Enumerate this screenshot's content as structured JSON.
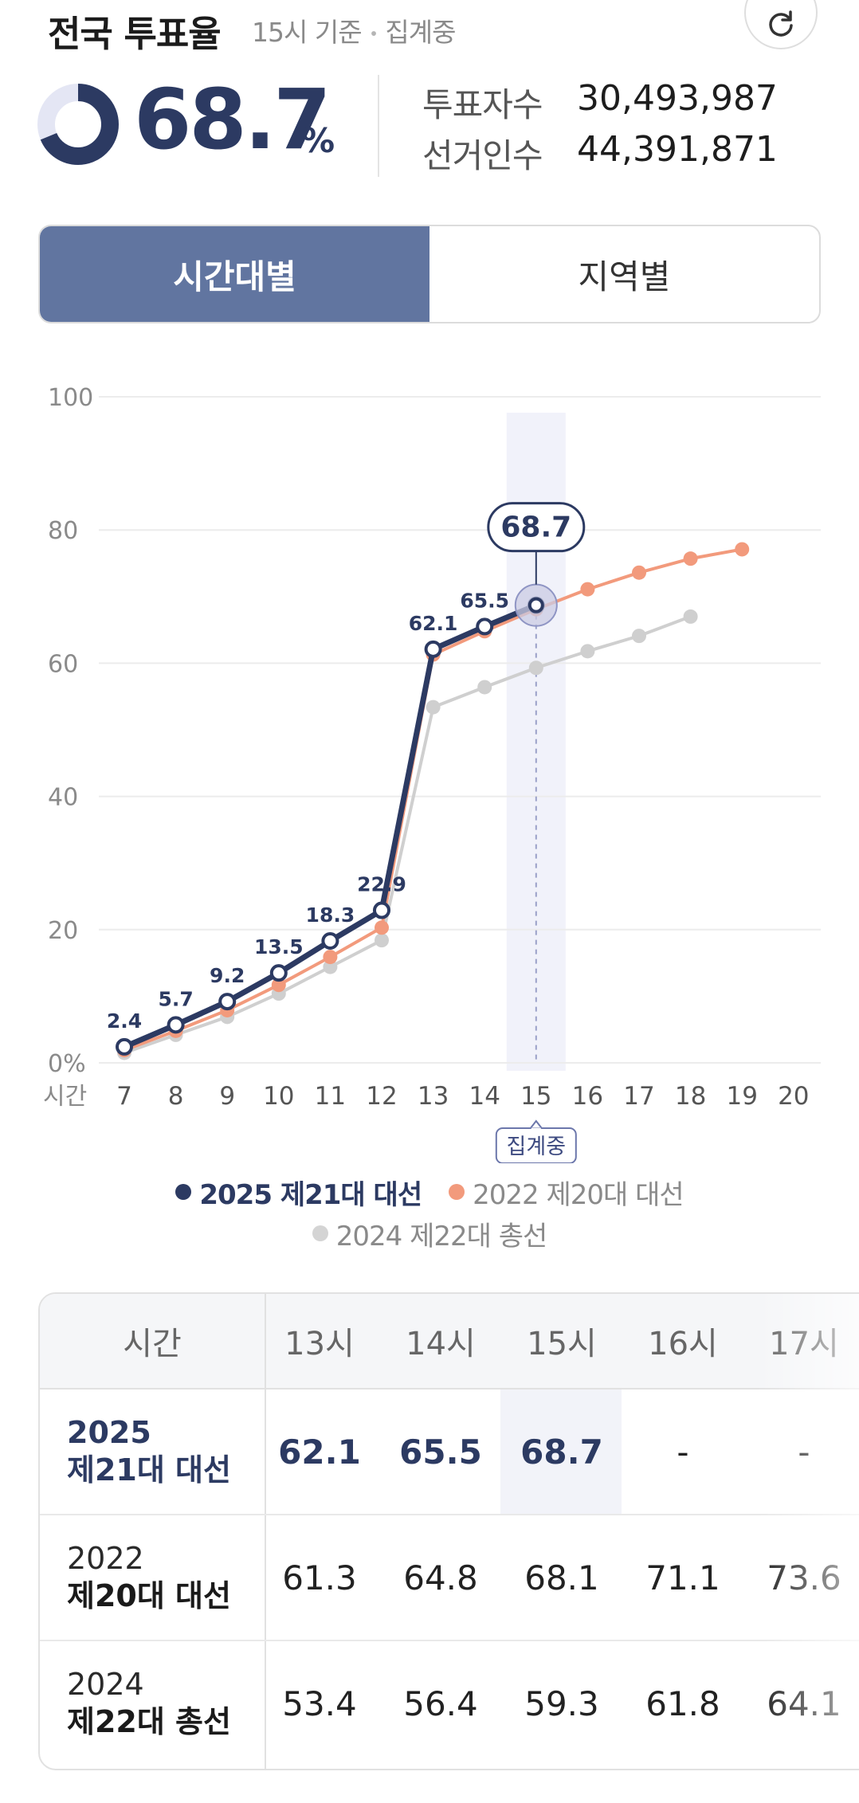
{
  "header": {
    "title": "전국 투표율",
    "subtitle_time": "15시 기준",
    "subtitle_sep": "•",
    "subtitle_status": "집계중",
    "rate": "68.7",
    "rate_unit": "%",
    "rate_fraction": 0.687,
    "voters_label": "투표자수",
    "voters_value": "30,493,987",
    "electorate_label": "선거인수",
    "electorate_value": "44,391,871"
  },
  "tabs": [
    {
      "label": "시간대별",
      "active": true
    },
    {
      "label": "지역별",
      "active": false
    }
  ],
  "chart_data": {
    "type": "line",
    "title": "",
    "xlabel": "시간",
    "ylabel": "",
    "x": [
      7,
      8,
      9,
      10,
      11,
      12,
      13,
      14,
      15,
      16,
      17,
      18,
      19,
      20
    ],
    "x_tick_labels": [
      "7",
      "8",
      "9",
      "10",
      "11",
      "12",
      "13",
      "14",
      "15",
      "16",
      "17",
      "18",
      "19",
      "20"
    ],
    "y_ticks": [
      "0%",
      "20",
      "40",
      "60",
      "80",
      "100"
    ],
    "ylim": [
      0,
      100
    ],
    "grid": true,
    "highlight_x": 15,
    "highlight_value_label": "68.7",
    "highlight_status_label": "집계중",
    "series": [
      {
        "name": "2025 제21대 대선",
        "color": "#2c3a62",
        "x": [
          7,
          8,
          9,
          10,
          11,
          12,
          13,
          14,
          15
        ],
        "values": [
          2.4,
          5.7,
          9.2,
          13.5,
          18.3,
          22.9,
          62.1,
          65.5,
          68.7
        ],
        "labels": [
          "2.4",
          "5.7",
          "9.2",
          "13.5",
          "18.3",
          "22.9",
          "62.1",
          "65.5"
        ]
      },
      {
        "name": "2022 제20대 대선",
        "color": "#f29a7c",
        "x": [
          7,
          8,
          9,
          10,
          11,
          12,
          13,
          14,
          15,
          16,
          17,
          18,
          19
        ],
        "values": [
          1.9,
          4.8,
          7.9,
          11.7,
          15.9,
          20.3,
          61.3,
          64.8,
          68.1,
          71.1,
          73.6,
          75.7,
          77.1
        ]
      },
      {
        "name": "2024 제22대 총선",
        "color": "#cfcfcf",
        "x": [
          7,
          8,
          9,
          10,
          11,
          12,
          13,
          14,
          15,
          16,
          17,
          18
        ],
        "values": [
          1.5,
          4.2,
          6.9,
          10.4,
          14.4,
          18.4,
          53.4,
          56.4,
          59.3,
          61.8,
          64.1,
          67.0
        ]
      }
    ]
  },
  "legend": [
    {
      "label": "2025 제21대 대선",
      "color": "#2c3a62"
    },
    {
      "label": "2022 제20대 대선",
      "color": "#f29a7c"
    },
    {
      "label": "2024 제22대 총선",
      "color": "#cfcfcf"
    }
  ],
  "table": {
    "header_label": "시간",
    "columns": [
      "13시",
      "14시",
      "15시",
      "16시",
      "17시"
    ],
    "rows": [
      {
        "year": "2025",
        "name": "제21대 대선",
        "values": [
          "62.1",
          "65.5",
          "68.7",
          "-",
          "-"
        ]
      },
      {
        "year": "2022",
        "name": "제20대 대선",
        "values": [
          "61.3",
          "64.8",
          "68.1",
          "71.1",
          "73.6"
        ]
      },
      {
        "year": "2024",
        "name": "제22대 총선",
        "values": [
          "53.4",
          "56.4",
          "59.3",
          "61.8",
          "64.1"
        ]
      }
    ]
  }
}
